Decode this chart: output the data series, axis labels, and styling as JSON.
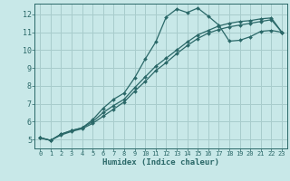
{
  "xlabel": "Humidex (Indice chaleur)",
  "bg_color": "#c8e8e8",
  "grid_color": "#a8cccc",
  "line_color": "#2a6868",
  "xlim": [
    -0.5,
    23.5
  ],
  "ylim": [
    4.5,
    12.6
  ],
  "x_ticks": [
    0,
    1,
    2,
    3,
    4,
    5,
    6,
    7,
    8,
    9,
    10,
    11,
    12,
    13,
    14,
    15,
    16,
    17,
    18,
    19,
    20,
    21,
    22,
    23
  ],
  "y_ticks": [
    5,
    6,
    7,
    8,
    9,
    10,
    11,
    12
  ],
  "line1_y": [
    5.1,
    4.95,
    5.3,
    5.5,
    5.65,
    6.1,
    6.75,
    7.25,
    7.6,
    8.45,
    9.5,
    10.45,
    11.85,
    12.3,
    12.1,
    12.35,
    11.9,
    11.4,
    10.5,
    10.55,
    10.75,
    11.05,
    11.1,
    11.0
  ],
  "line2_y": [
    5.1,
    4.95,
    5.3,
    5.5,
    5.65,
    6.0,
    6.5,
    6.9,
    7.25,
    7.9,
    8.5,
    9.1,
    9.55,
    10.0,
    10.45,
    10.85,
    11.1,
    11.35,
    11.5,
    11.6,
    11.65,
    11.75,
    11.8,
    11.0
  ],
  "line3_y": [
    5.1,
    4.95,
    5.25,
    5.45,
    5.6,
    5.9,
    6.3,
    6.7,
    7.1,
    7.7,
    8.25,
    8.85,
    9.3,
    9.8,
    10.25,
    10.65,
    10.95,
    11.15,
    11.3,
    11.4,
    11.5,
    11.6,
    11.7,
    11.0
  ]
}
